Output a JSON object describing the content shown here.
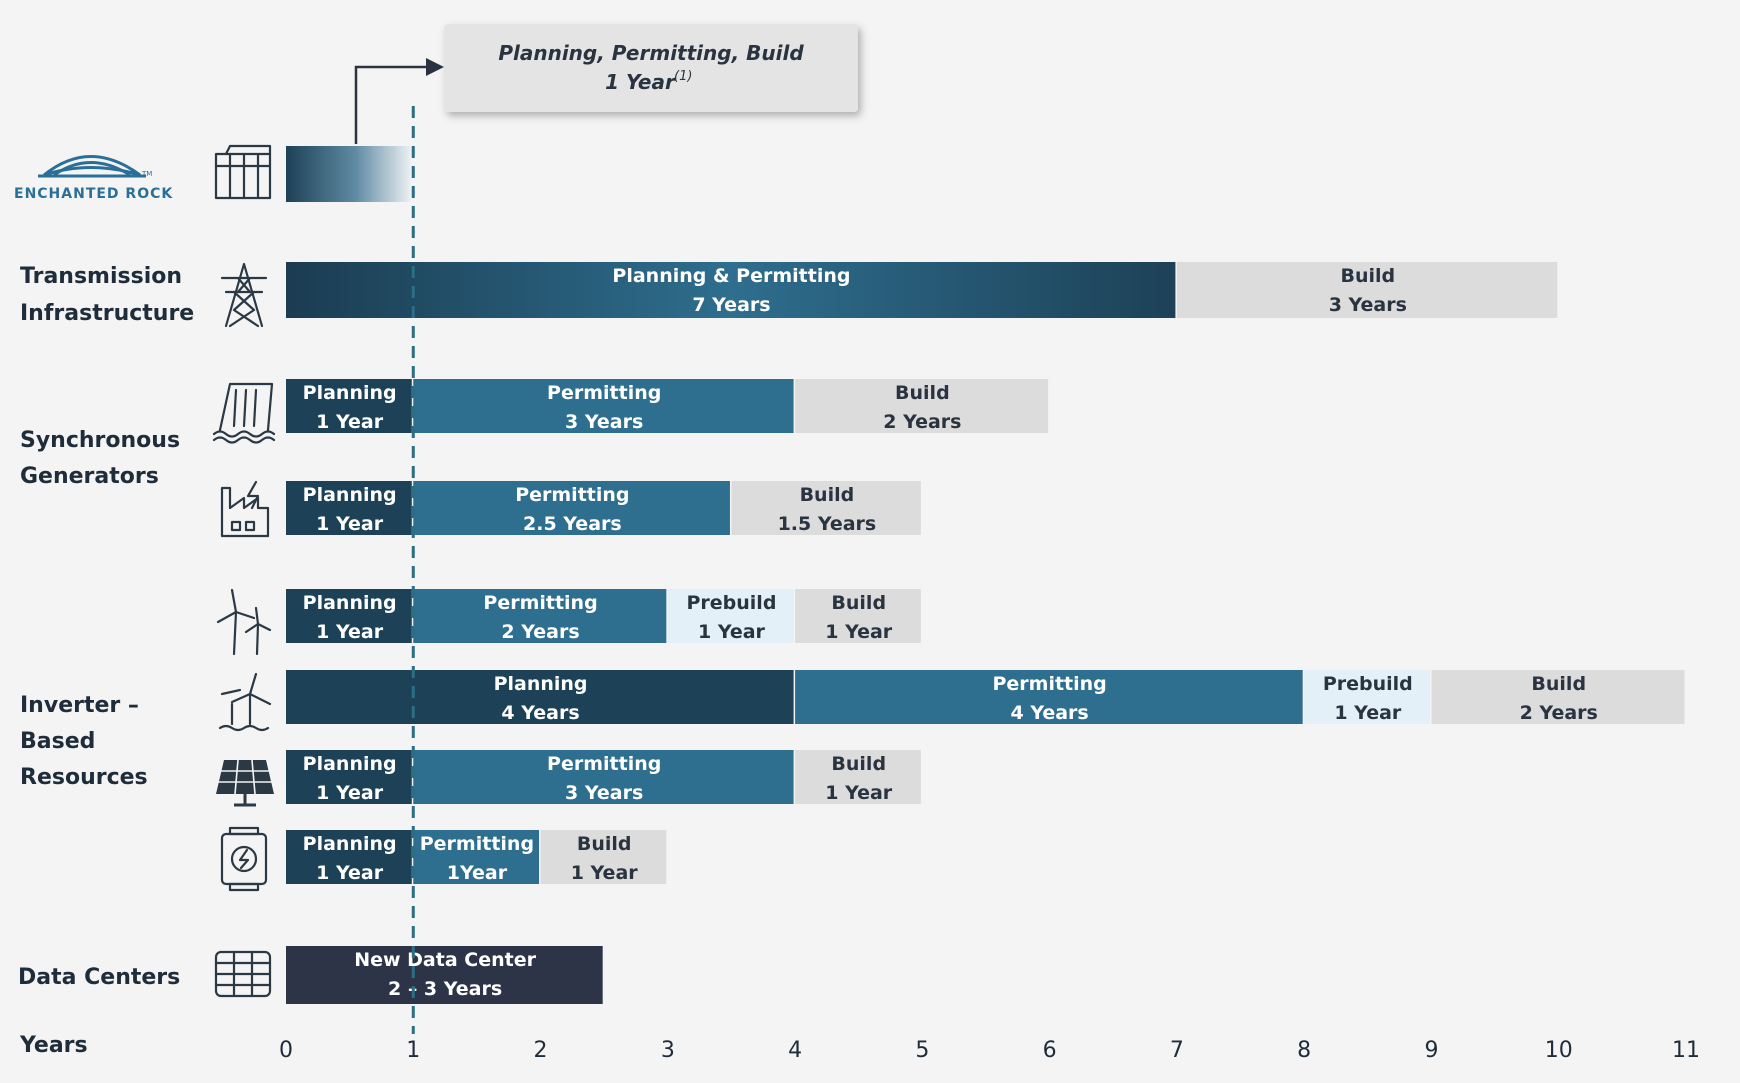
{
  "logo": {
    "text": "ENCHANTED ROCK",
    "tm": "TM"
  },
  "callout": {
    "line1": "Planning, Permitting, Build",
    "line2": "1 Year",
    "sup": "(1)"
  },
  "group_labels": [
    {
      "id": "transmission",
      "lines": [
        "Transmission",
        "Infrastructure"
      ]
    },
    {
      "id": "synchronous",
      "lines": [
        "Synchronous",
        "Generators"
      ]
    },
    {
      "id": "inverter",
      "lines": [
        "Inverter –",
        "Based",
        "Resources"
      ]
    },
    {
      "id": "datacenters",
      "lines": [
        "Data Centers"
      ]
    }
  ],
  "x_axis_label": "Years",
  "colors": {
    "planning": "#1d4157",
    "permitting": "#2e6e8e",
    "prebuild": "#e3f0f7",
    "build": "#dcdcdc",
    "datacenter": "#2e3447",
    "reference_line": "#2a6f86",
    "label_light": "#ffffff",
    "label_dark": "#2a3440"
  },
  "icons": [
    "generator-icon",
    "transmission-tower-icon",
    "hydro-dam-icon",
    "factory-icon",
    "wind-turbine-icon",
    "offshore-wind-icon",
    "solar-panel-icon",
    "battery-storage-icon",
    "server-rack-icon"
  ],
  "chart_data": {
    "type": "bar",
    "orientation": "horizontal-stacked",
    "xlabel": "Years",
    "xlim": [
      0,
      11
    ],
    "ticks": [
      0,
      1,
      2,
      3,
      4,
      5,
      6,
      7,
      8,
      9,
      10,
      11
    ],
    "reference_line_x": 1,
    "rows": [
      {
        "id": "enchanted-rock",
        "icon": "generator-icon",
        "segments": [
          {
            "phase": "total",
            "start": 0,
            "duration": 1,
            "label": [
              "",
              ""
            ]
          }
        ]
      },
      {
        "id": "transmission",
        "icon": "transmission-tower-icon",
        "segments": [
          {
            "phase": "planning_permitting",
            "start": 0,
            "duration": 7,
            "label": [
              "Planning & Permitting",
              "7 Years"
            ]
          },
          {
            "phase": "build",
            "start": 7,
            "duration": 3,
            "label": [
              "Build",
              "3 Years"
            ]
          }
        ]
      },
      {
        "id": "hydro",
        "icon": "hydro-dam-icon",
        "segments": [
          {
            "phase": "planning",
            "start": 0,
            "duration": 1,
            "label": [
              "Planning",
              "1 Year"
            ]
          },
          {
            "phase": "permitting",
            "start": 1,
            "duration": 3,
            "label": [
              "Permitting",
              "3 Years"
            ]
          },
          {
            "phase": "build",
            "start": 4,
            "duration": 2,
            "label": [
              "Build",
              "2 Years"
            ]
          }
        ]
      },
      {
        "id": "thermal",
        "icon": "factory-icon",
        "segments": [
          {
            "phase": "planning",
            "start": 0,
            "duration": 1,
            "label": [
              "Planning",
              "1 Year"
            ]
          },
          {
            "phase": "permitting",
            "start": 1,
            "duration": 2.5,
            "label": [
              "Permitting",
              "2.5 Years"
            ]
          },
          {
            "phase": "build",
            "start": 3.5,
            "duration": 1.5,
            "label": [
              "Build",
              "1.5 Years"
            ]
          }
        ]
      },
      {
        "id": "wind",
        "icon": "wind-turbine-icon",
        "segments": [
          {
            "phase": "planning",
            "start": 0,
            "duration": 1,
            "label": [
              "Planning",
              "1 Year"
            ]
          },
          {
            "phase": "permitting",
            "start": 1,
            "duration": 2,
            "label": [
              "Permitting",
              "2 Years"
            ]
          },
          {
            "phase": "prebuild",
            "start": 3,
            "duration": 1,
            "label": [
              "Prebuild",
              "1 Year"
            ]
          },
          {
            "phase": "build",
            "start": 4,
            "duration": 1,
            "label": [
              "Build",
              "1 Year"
            ]
          }
        ]
      },
      {
        "id": "offshore-wind",
        "icon": "offshore-wind-icon",
        "segments": [
          {
            "phase": "planning",
            "start": 0,
            "duration": 4,
            "label": [
              "Planning",
              "4 Years"
            ]
          },
          {
            "phase": "permitting",
            "start": 4,
            "duration": 4,
            "label": [
              "Permitting",
              "4 Years"
            ]
          },
          {
            "phase": "prebuild",
            "start": 8,
            "duration": 1,
            "label": [
              "Prebuild",
              "1 Year"
            ]
          },
          {
            "phase": "build",
            "start": 9,
            "duration": 2,
            "label": [
              "Build",
              "2 Years"
            ]
          }
        ]
      },
      {
        "id": "solar",
        "icon": "solar-panel-icon",
        "segments": [
          {
            "phase": "planning",
            "start": 0,
            "duration": 1,
            "label": [
              "Planning",
              "1 Year"
            ]
          },
          {
            "phase": "permitting",
            "start": 1,
            "duration": 3,
            "label": [
              "Permitting",
              "3 Years"
            ]
          },
          {
            "phase": "build",
            "start": 4,
            "duration": 1,
            "label": [
              "Build",
              "1 Year"
            ]
          }
        ]
      },
      {
        "id": "storage",
        "icon": "battery-storage-icon",
        "segments": [
          {
            "phase": "planning",
            "start": 0,
            "duration": 1,
            "label": [
              "Planning",
              "1 Year"
            ]
          },
          {
            "phase": "permitting",
            "start": 1,
            "duration": 1,
            "label": [
              "Permitting",
              "1Year"
            ]
          },
          {
            "phase": "build",
            "start": 2,
            "duration": 1,
            "label": [
              "Build",
              "1 Year"
            ]
          }
        ]
      },
      {
        "id": "data-center",
        "icon": "server-rack-icon",
        "segments": [
          {
            "phase": "datacenter",
            "start": 0,
            "duration": 2.5,
            "label": [
              "New Data Center",
              "2 – 3 Years"
            ]
          }
        ]
      }
    ]
  }
}
